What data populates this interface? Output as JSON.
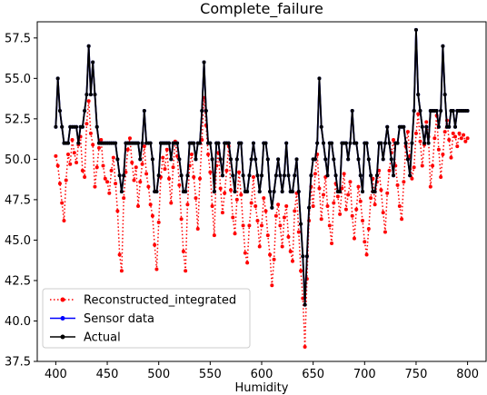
{
  "chart_data": {
    "type": "line",
    "title": "Complete_failure",
    "xlabel": "Humidity",
    "ylabel": "",
    "xlim": [
      382,
      818
    ],
    "ylim": [
      37.5,
      58.5
    ],
    "xticks": [
      400,
      450,
      500,
      550,
      600,
      650,
      700,
      750,
      800
    ],
    "yticks": [
      37.5,
      40.0,
      42.5,
      45.0,
      47.5,
      50.0,
      52.5,
      55.0,
      57.5
    ],
    "grid": false,
    "legend_position": "lower-left",
    "x": [
      400,
      402,
      404,
      406,
      408,
      410,
      412,
      414,
      416,
      418,
      420,
      422,
      424,
      426,
      428,
      430,
      432,
      434,
      436,
      438,
      440,
      442,
      444,
      446,
      448,
      450,
      452,
      454,
      456,
      458,
      460,
      462,
      464,
      466,
      468,
      470,
      472,
      474,
      476,
      478,
      480,
      482,
      484,
      486,
      488,
      490,
      492,
      494,
      496,
      498,
      500,
      502,
      504,
      506,
      508,
      510,
      512,
      514,
      516,
      518,
      520,
      522,
      524,
      526,
      528,
      530,
      532,
      534,
      536,
      538,
      540,
      542,
      544,
      546,
      548,
      550,
      552,
      554,
      556,
      558,
      560,
      562,
      564,
      566,
      568,
      570,
      572,
      574,
      576,
      578,
      580,
      582,
      584,
      586,
      588,
      590,
      592,
      594,
      596,
      598,
      600,
      602,
      604,
      606,
      608,
      610,
      612,
      614,
      616,
      618,
      620,
      622,
      624,
      626,
      628,
      630,
      632,
      634,
      636,
      638,
      640,
      642,
      644,
      646,
      648,
      650,
      652,
      654,
      656,
      658,
      660,
      662,
      664,
      666,
      668,
      670,
      672,
      674,
      676,
      678,
      680,
      682,
      684,
      686,
      688,
      690,
      692,
      694,
      696,
      698,
      700,
      702,
      704,
      706,
      708,
      710,
      712,
      714,
      716,
      718,
      720,
      722,
      724,
      726,
      728,
      730,
      732,
      734,
      736,
      738,
      740,
      742,
      744,
      746,
      748,
      750,
      752,
      754,
      756,
      758,
      760,
      762,
      764,
      766,
      768,
      770,
      772,
      774,
      776,
      778,
      780,
      782,
      784,
      786,
      788,
      790,
      792,
      794,
      796,
      798,
      800
    ],
    "series": [
      {
        "name": "Reconstructed_integrated",
        "color": "#ff0000",
        "style": "dotted",
        "values": [
          50.2,
          49.6,
          48.5,
          47.3,
          46.2,
          48.7,
          50.3,
          49.7,
          51.2,
          50.4,
          49.8,
          50.9,
          51.4,
          49.3,
          48.9,
          52.2,
          53.6,
          51.6,
          50.9,
          48.3,
          49.5,
          50.7,
          51.2,
          49.6,
          48.8,
          48.6,
          47.9,
          49.3,
          50.1,
          48.5,
          46.8,
          44.1,
          43.1,
          47.6,
          49.2,
          50.6,
          51.3,
          49.8,
          48.7,
          49.5,
          47.1,
          48.6,
          49.7,
          50.8,
          49.1,
          48.3,
          47.2,
          46.5,
          44.7,
          43.2,
          46.1,
          48.9,
          50.1,
          49.4,
          50.6,
          48.8,
          47.3,
          49.5,
          51.1,
          50.2,
          48.4,
          46.3,
          44.3,
          43.1,
          47.2,
          49.6,
          50.3,
          48.9,
          47.6,
          45.7,
          48.8,
          51.2,
          53.8,
          52.1,
          50.3,
          49.2,
          47.1,
          45.3,
          49.6,
          50.4,
          48.2,
          46.7,
          47.9,
          49.3,
          50.8,
          48.1,
          46.4,
          45.4,
          47.5,
          49.2,
          47.8,
          45.9,
          44.2,
          43.6,
          45.9,
          47.3,
          48.9,
          47.1,
          46.2,
          44.6,
          45.9,
          47.6,
          46.8,
          45.3,
          44.1,
          42.2,
          43.8,
          46.5,
          47.2,
          45.9,
          44.6,
          46.4,
          47.1,
          45.2,
          44.3,
          43.7,
          46.8,
          47.9,
          45.5,
          43.1,
          41.4,
          38.4,
          42.6,
          46.2,
          48.3,
          47.1,
          49.1,
          50.3,
          48.2,
          46.3,
          47.8,
          48.9,
          47.1,
          45.9,
          44.8,
          47.3,
          48.5,
          47.7,
          46.6,
          48.2,
          49.1,
          46.9,
          47.8,
          48.6,
          46.5,
          45.1,
          46.9,
          48.3,
          47.4,
          46.2,
          44.9,
          44.1,
          45.7,
          47.6,
          48.8,
          47.2,
          48.6,
          49.3,
          48.1,
          46.7,
          45.5,
          47.9,
          49.3,
          50.4,
          51.2,
          49.6,
          48.4,
          47.1,
          46.3,
          48.6,
          50.8,
          51.7,
          50.2,
          48.8,
          49.5,
          51.6,
          52.8,
          51.1,
          49.6,
          50.9,
          52.3,
          51.4,
          48.3,
          49.6,
          51.3,
          52.7,
          50.6,
          48.9,
          50.3,
          51.7,
          52.4,
          51.2,
          50.1,
          51.6,
          51.4,
          50.8,
          51.6,
          51.3,
          51.5,
          51.1,
          51.3
        ]
      },
      {
        "name": "Sensor data",
        "color": "#0000ff",
        "style": "solid",
        "values": [
          52,
          55,
          53,
          52,
          51,
          51,
          51,
          52,
          52,
          52,
          52,
          51,
          52,
          52,
          53,
          54,
          57,
          54,
          56,
          54,
          52,
          51,
          51,
          51,
          51,
          51,
          51,
          51,
          51,
          51,
          50,
          49,
          48,
          49,
          51,
          51,
          51,
          51,
          51,
          51,
          51,
          50,
          51,
          53,
          51,
          51,
          51,
          50,
          48,
          48,
          49,
          51,
          51,
          51,
          51,
          51,
          50,
          51,
          51,
          51,
          50,
          49,
          48,
          48,
          49,
          51,
          51,
          51,
          50,
          51,
          51,
          53,
          56,
          53,
          51,
          51,
          50,
          48,
          51,
          51,
          50,
          49,
          51,
          51,
          51,
          50,
          49,
          48,
          50,
          51,
          51,
          49,
          48,
          48,
          49,
          50,
          51,
          50,
          49,
          48,
          49,
          51,
          51,
          50,
          48,
          47,
          48,
          49,
          50,
          49,
          48,
          49,
          51,
          49,
          48,
          48,
          49,
          50,
          48,
          46,
          44,
          41,
          44,
          47,
          49,
          50,
          50,
          51,
          55,
          52,
          51,
          50,
          49,
          51,
          51,
          50,
          49,
          48,
          48,
          51,
          51,
          51,
          50,
          51,
          53,
          51,
          51,
          50,
          49,
          48,
          51,
          51,
          50,
          49,
          48,
          48,
          49,
          51,
          51,
          50,
          51,
          52,
          51,
          50,
          49,
          51,
          51,
          52,
          52,
          52,
          51,
          50,
          49,
          51,
          53,
          58,
          54,
          53,
          52,
          51,
          52,
          51,
          53,
          53,
          53,
          53,
          52,
          53,
          57,
          54,
          52,
          52,
          53,
          53,
          52,
          53,
          53,
          53,
          53,
          53,
          53
        ]
      },
      {
        "name": "Actual",
        "color": "#000000",
        "style": "solid",
        "values": [
          52,
          55,
          53,
          52,
          51,
          51,
          51,
          52,
          52,
          52,
          52,
          51,
          52,
          52,
          53,
          54,
          57,
          54,
          56,
          54,
          52,
          51,
          51,
          51,
          51,
          51,
          51,
          51,
          51,
          51,
          50,
          49,
          48,
          49,
          51,
          51,
          51,
          51,
          51,
          51,
          51,
          50,
          51,
          53,
          51,
          51,
          51,
          50,
          48,
          48,
          49,
          51,
          51,
          51,
          51,
          51,
          50,
          51,
          51,
          51,
          50,
          49,
          48,
          48,
          49,
          51,
          51,
          51,
          50,
          51,
          51,
          53,
          56,
          53,
          51,
          51,
          50,
          48,
          51,
          51,
          50,
          49,
          51,
          51,
          51,
          50,
          49,
          48,
          50,
          51,
          51,
          49,
          48,
          48,
          49,
          50,
          51,
          50,
          49,
          48,
          49,
          51,
          51,
          50,
          48,
          47,
          48,
          49,
          50,
          49,
          48,
          49,
          51,
          49,
          48,
          48,
          49,
          50,
          48,
          46,
          44,
          41,
          44,
          47,
          49,
          50,
          50,
          51,
          55,
          52,
          51,
          50,
          49,
          51,
          51,
          50,
          49,
          48,
          48,
          51,
          51,
          51,
          50,
          51,
          53,
          51,
          51,
          50,
          49,
          48,
          51,
          51,
          50,
          49,
          48,
          48,
          49,
          51,
          51,
          50,
          51,
          52,
          51,
          50,
          49,
          51,
          51,
          52,
          52,
          52,
          51,
          50,
          49,
          51,
          53,
          58,
          54,
          53,
          52,
          51,
          52,
          51,
          53,
          53,
          53,
          53,
          52,
          53,
          57,
          54,
          52,
          52,
          53,
          53,
          52,
          53,
          53,
          53,
          53,
          53,
          53
        ]
      }
    ]
  }
}
